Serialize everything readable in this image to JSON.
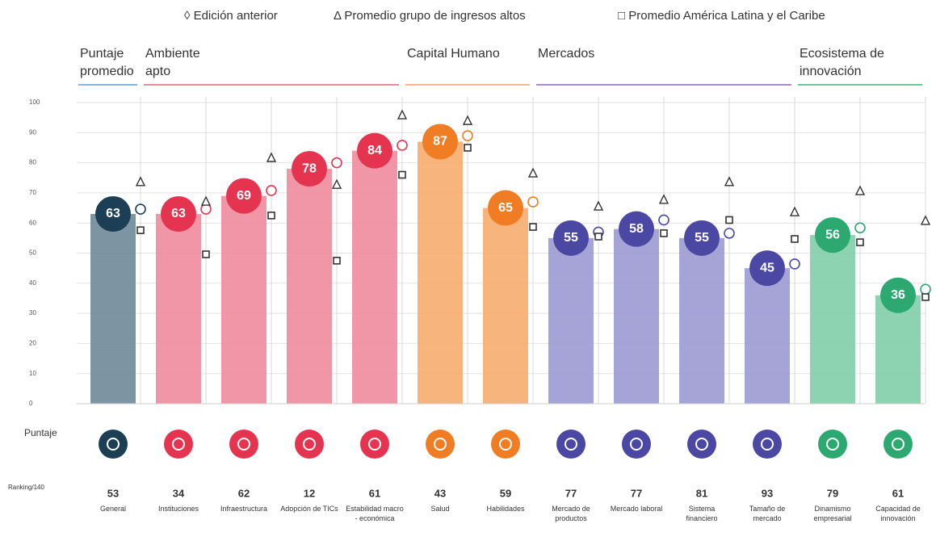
{
  "chart_data": {
    "type": "bar",
    "legend": [
      "◊ Edición anterior",
      "Δ Promedio grupo de ingresos altos",
      "□ Promedio América Latina y el Caribe"
    ],
    "groups": [
      {
        "name": "Puntaje promedio",
        "color": "#1d3f55",
        "bar_color": "#6f8a98",
        "line_color": "#5b9bd5"
      },
      {
        "name": "Ambiente apto",
        "color": "#e5344f",
        "bar_color": "#ef8b9c",
        "line_color": "#e8607a"
      },
      {
        "name": "Capital Humano",
        "color": "#f07d23",
        "bar_color": "#f6ac6e",
        "line_color": "#f3a265"
      },
      {
        "name": "Mercados",
        "color": "#4b48a4",
        "bar_color": "#9c9ad3",
        "line_color": "#8a67c0"
      },
      {
        "name": "Ecosistema de innovación",
        "color": "#2ca870",
        "bar_color": "#82cea8",
        "line_color": "#3fb57c"
      }
    ],
    "categories": [
      "General",
      "Instituciones",
      "Infraestructura",
      "Adopción de TICs",
      "Estabilidad macro - económica",
      "Salud",
      "Habilidades",
      "Mercado de productos",
      "Mercado laboral",
      "Sistema financiero",
      "Tamaño de mercado",
      "Dinamismo empresarial",
      "Capacidad de innovación"
    ],
    "values": [
      63,
      63,
      69,
      78,
      84,
      87,
      65,
      55,
      58,
      55,
      45,
      56,
      36
    ],
    "series": [
      {
        "name": "Edición anterior",
        "values": [
          64.6,
          64.6,
          70.8,
          80,
          85.8,
          89,
          67,
          57,
          61,
          56.6,
          46.4,
          58.4,
          38
        ]
      },
      {
        "name": "Promedio grupo de ingresos altos",
        "values": [
          73.5,
          67,
          81.5,
          72.6,
          95.7,
          93.8,
          76.4,
          65.4,
          67.6,
          73.5,
          63.5,
          70.5,
          60.6
        ]
      },
      {
        "name": "Promedio América Latina y el Caribe",
        "values": [
          57.6,
          49.6,
          62.5,
          47.5,
          76,
          85,
          58.7,
          55.5,
          56.6,
          61,
          54.7,
          53.6,
          35.4
        ]
      }
    ],
    "score_label": "Puntaje",
    "ranking_label": "Ranking/140",
    "rankings": [
      53,
      34,
      62,
      12,
      61,
      43,
      59,
      77,
      77,
      81,
      93,
      79,
      61
    ],
    "ylim": [
      0,
      100
    ],
    "yticks": [
      0,
      10,
      20,
      30,
      40,
      50,
      60,
      70,
      80,
      90,
      100
    ],
    "grid": true
  }
}
